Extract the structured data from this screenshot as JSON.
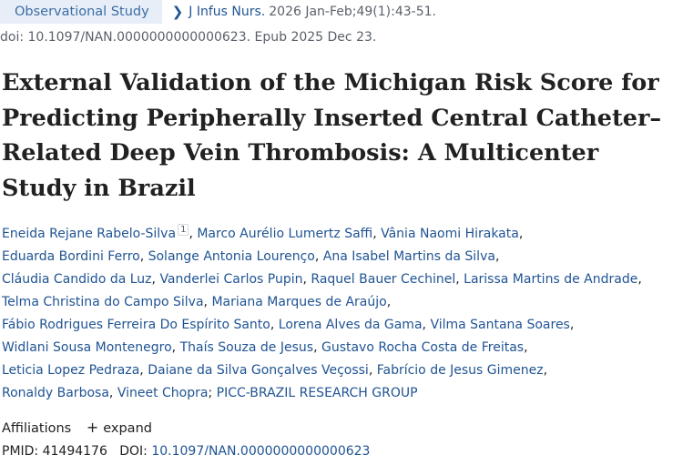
{
  "article_type": "Observational Study",
  "journal": {
    "name": "J Infus Nurs.",
    "citation": "2026 Jan-Feb;49(1):43-51."
  },
  "doi_line": "doi: 10.1097/NAN.0000000000000623. Epub 2025 Dec 23.",
  "title": "External Validation of the Michigan Risk Score for Predicting Peripherally Inserted Central Catheter–Related Deep Vein Thrombosis: A Multicenter Study in Brazil",
  "authors": {
    "line1": {
      "a1": "Eneida Rejane Rabelo-Silva",
      "a1_sup": "1",
      "a2": "Marco Aurélio Lumertz Saffi",
      "a3": "Vânia Naomi Hirakata"
    },
    "line2": {
      "a1": "Eduarda Bordini Ferro",
      "a2": "Solange Antonia Lourenço",
      "a3": "Ana Isabel Martins da Silva"
    },
    "line3": {
      "a1": "Cláudia Candido da Luz",
      "a2": "Vanderlei Carlos Pupin",
      "a3": "Raquel Bauer Cechinel",
      "a4": "Larissa Martins de Andrade"
    },
    "line4": {
      "a1": "Telma Christina do Campo Silva",
      "a2": "Mariana Marques de Araújo"
    },
    "line5": {
      "a1": "Fábio Rodrigues Ferreira Do Espírito Santo",
      "a2": "Lorena Alves da Gama",
      "a3": "Vilma Santana Soares"
    },
    "line6": {
      "a1": "Widlani Sousa Montenegro",
      "a2": "Thaís Souza de Jesus",
      "a3": "Gustavo Rocha Costa de Freitas"
    },
    "line7": {
      "a1": "Leticia Lopez Pedraza",
      "a2": "Daiane da Silva Gonçalves Veçossi",
      "a3": "Fabrício de Jesus Gimenez"
    },
    "line8": {
      "a1": "Ronaldy Barbosa",
      "a2": "Vineet Chopra",
      "a3": "PICC-BRAZIL RESEARCH GROUP"
    }
  },
  "affiliations": {
    "label": "Affiliations",
    "expand_label": "expand"
  },
  "ids": {
    "pmid_label": "PMID:",
    "pmid": "41494176",
    "doi_label": "DOI:",
    "doi": "10.1097/NAN.0000000000000623"
  }
}
